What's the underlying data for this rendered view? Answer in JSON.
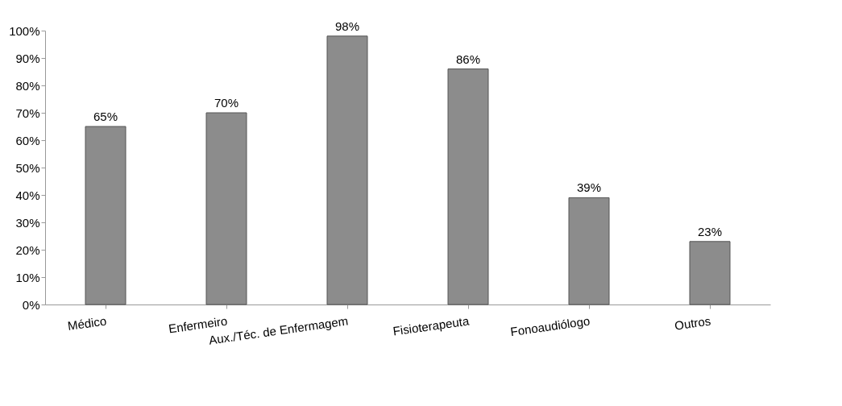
{
  "chart_data": {
    "type": "bar",
    "categories": [
      "Médico",
      "Enfermeiro",
      "Aux./Téc. de Enfermagem",
      "Fisioterapeuta",
      "Fonoaudiólogo",
      "Outros"
    ],
    "values": [
      65,
      70,
      98,
      86,
      39,
      23
    ],
    "value_labels": [
      "65%",
      "70%",
      "98%",
      "86%",
      "39%",
      "23%"
    ],
    "color": "#8c8c8c",
    "ylim": [
      0,
      100
    ],
    "yticks": [
      {
        "value": 0,
        "label": "0%"
      },
      {
        "value": 10,
        "label": "10%"
      },
      {
        "value": 20,
        "label": "20%"
      },
      {
        "value": 30,
        "label": "30%"
      },
      {
        "value": 40,
        "label": "40%"
      },
      {
        "value": 50,
        "label": "50%"
      },
      {
        "value": 60,
        "label": "60%"
      },
      {
        "value": 70,
        "label": "70%"
      },
      {
        "value": 80,
        "label": "80%"
      },
      {
        "value": 90,
        "label": "90%"
      },
      {
        "value": 100,
        "label": "100%"
      }
    ],
    "grid": false
  }
}
